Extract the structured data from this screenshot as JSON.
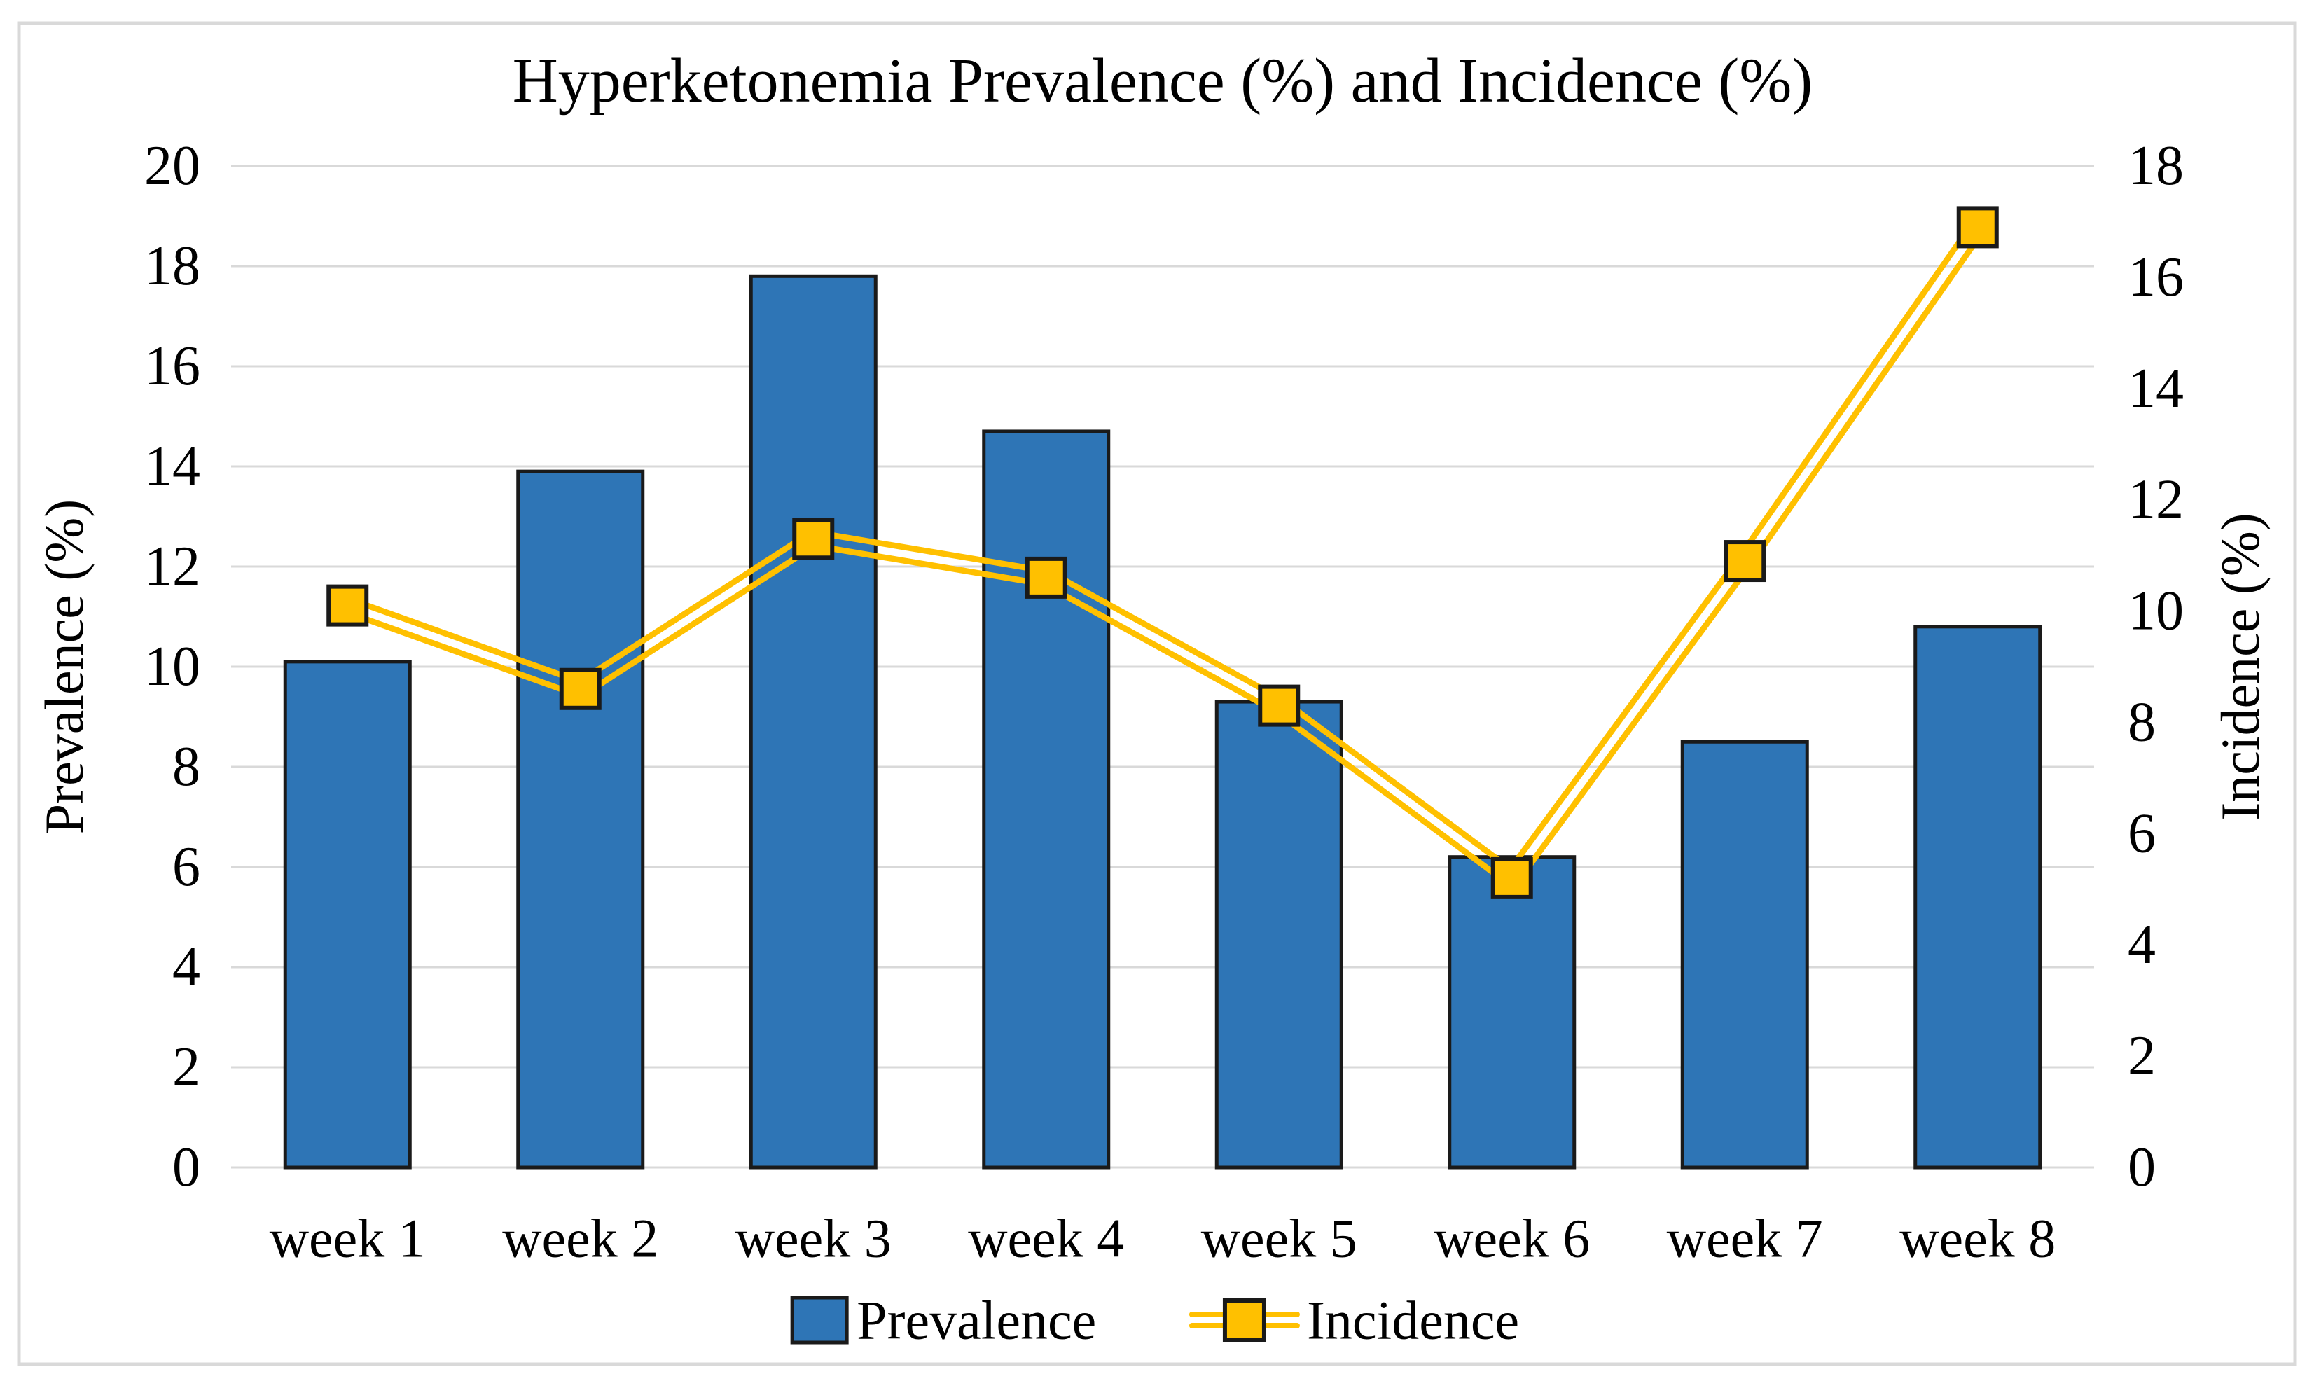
{
  "title": "Hyperketonemia Prevalence (%) and Incidence (%)",
  "colors": {
    "bar_fill": "#2E75B6",
    "bar_border": "#1A1A1A",
    "line": "#FFC000",
    "marker_fill": "#FFC000",
    "marker_border": "#1A1A1A",
    "gridline": "#D9D9D9",
    "frame_border": "#D9D9D9",
    "text": "#000000",
    "background": "#FFFFFF"
  },
  "chart_data": {
    "type": "combo-bar-line",
    "title": "Hyperketonemia Prevalence (%) and Incidence (%)",
    "categories": [
      "week 1",
      "week 2",
      "week 3",
      "week 4",
      "week 5",
      "week 6",
      "week 7",
      "week 8"
    ],
    "series": [
      {
        "name": "Prevalence",
        "type": "bar",
        "axis": "left",
        "values": [
          10.1,
          13.9,
          17.8,
          14.7,
          9.3,
          6.2,
          8.5,
          10.8
        ]
      },
      {
        "name": "Incidence",
        "type": "line",
        "axis": "right",
        "values": [
          10.1,
          8.6,
          11.3,
          10.6,
          8.3,
          5.2,
          10.9,
          16.9
        ]
      }
    ],
    "left_axis": {
      "label": "Prevalence (%)",
      "min": 0,
      "max": 20,
      "step": 2
    },
    "right_axis": {
      "label": "Incidence (%)",
      "min": 0,
      "max": 18,
      "step": 2
    },
    "grid": true,
    "legend_position": "bottom",
    "legend": [
      "Prevalence",
      "Incidence"
    ]
  }
}
